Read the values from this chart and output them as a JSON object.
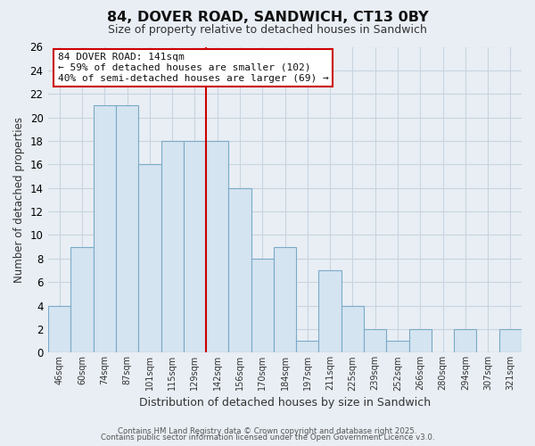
{
  "title": "84, DOVER ROAD, SANDWICH, CT13 0BY",
  "subtitle": "Size of property relative to detached houses in Sandwich",
  "xlabel": "Distribution of detached houses by size in Sandwich",
  "ylabel": "Number of detached properties",
  "bin_labels": [
    "46sqm",
    "60sqm",
    "74sqm",
    "87sqm",
    "101sqm",
    "115sqm",
    "129sqm",
    "142sqm",
    "156sqm",
    "170sqm",
    "184sqm",
    "197sqm",
    "211sqm",
    "225sqm",
    "239sqm",
    "252sqm",
    "266sqm",
    "280sqm",
    "294sqm",
    "307sqm",
    "321sqm"
  ],
  "bar_values": [
    4,
    9,
    21,
    21,
    16,
    18,
    18,
    18,
    14,
    8,
    9,
    1,
    7,
    4,
    2,
    1,
    2,
    0,
    2,
    0,
    2
  ],
  "bar_color": "#d4e4f0",
  "bar_edge_color": "#7aaac8",
  "vline_color": "#cc0000",
  "ylim": [
    0,
    26
  ],
  "yticks": [
    0,
    2,
    4,
    6,
    8,
    10,
    12,
    14,
    16,
    18,
    20,
    22,
    24,
    26
  ],
  "annotation_title": "84 DOVER ROAD: 141sqm",
  "annotation_line1": "← 59% of detached houses are smaller (102)",
  "annotation_line2": "40% of semi-detached houses are larger (69) →",
  "grid_color": "#c8d4e0",
  "background_color": "#e8eef4",
  "footer_line1": "Contains HM Land Registry data © Crown copyright and database right 2025.",
  "footer_line2": "Contains public sector information licensed under the Open Government Licence v3.0."
}
